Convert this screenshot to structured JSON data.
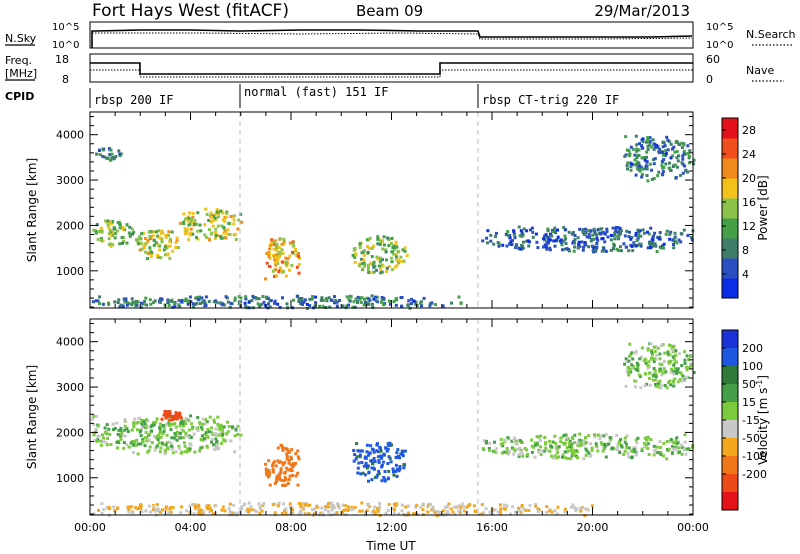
{
  "header": {
    "title": "Fort Hays West (fitACF)",
    "beam": "Beam 09",
    "date": "29/Mar/2013"
  },
  "summary_panels": {
    "nsky_label": "N.Sky",
    "nsky_ticks": [
      "10^5",
      "10^0"
    ],
    "nsearch_label": "N.Search",
    "nsearch_ticks": [
      "10^5",
      "10^0"
    ],
    "freq_label_1": "Freq.",
    "freq_label_2": "[MHz]",
    "freq_ticks": [
      "18",
      "8"
    ],
    "nave_label": "Nave",
    "nave_ticks": [
      "60",
      "0"
    ],
    "cpid_label": "CPID",
    "cpid_segments": [
      {
        "label": "rbsp 200 IF",
        "start_hour": 0
      },
      {
        "label": "normal (fast) 151 IF",
        "start_hour": 6
      },
      {
        "label": "rbsp CT-trig 220 IF",
        "start_hour": 15.5
      }
    ]
  },
  "chart_data": [
    {
      "type": "heatmap",
      "parameter": "Power",
      "ylabel": "Slant Range [km]",
      "xlabel": "",
      "x_ticks": [
        "00:00",
        "04:00",
        "08:00",
        "12:00",
        "16:00",
        "20:00",
        "00:00"
      ],
      "xlim_hours": [
        0,
        24
      ],
      "ylim_km": [
        180,
        4500
      ],
      "y_ticks": [
        "1000",
        "2000",
        "3000",
        "4000"
      ],
      "colorbar_label": "Power [dB]",
      "colorbar_ticks": [
        "4",
        "8",
        "12",
        "16",
        "20",
        "24",
        "28"
      ],
      "colorbar_range": [
        0,
        30
      ],
      "colormap": [
        "#0a2ee6",
        "#2a4fc0",
        "#3f7f6a",
        "#43a047",
        "#8bc34a",
        "#f2c11a",
        "#f08a1a",
        "#ef4f1a",
        "#e3121a"
      ],
      "regions": [
        {
          "t0": 0.0,
          "t1": 1.7,
          "r0": 1550,
          "r1": 2150,
          "value": 14
        },
        {
          "t0": 1.7,
          "t1": 3.5,
          "r0": 1300,
          "r1": 1950,
          "value": 16
        },
        {
          "t0": 3.5,
          "t1": 6.0,
          "r0": 1700,
          "r1": 2400,
          "value": 16
        },
        {
          "t0": 0.2,
          "t1": 1.2,
          "r0": 3450,
          "r1": 3750,
          "value": 8
        },
        {
          "t0": 6.9,
          "t1": 8.3,
          "r0": 850,
          "r1": 1750,
          "value": 20
        },
        {
          "t0": 10.4,
          "t1": 12.6,
          "r0": 950,
          "r1": 1800,
          "value": 14
        },
        {
          "t0": 15.5,
          "t1": 24.0,
          "r0": 1450,
          "r1": 2000,
          "value": 6
        },
        {
          "t0": 21.2,
          "t1": 24.0,
          "r0": 3000,
          "r1": 4000,
          "value": 8
        },
        {
          "t0": 0.0,
          "t1": 15.0,
          "r0": 200,
          "r1": 480,
          "value": 8
        }
      ]
    },
    {
      "type": "heatmap",
      "parameter": "Velocity",
      "ylabel": "Slant Range [km]",
      "xlabel": "Time UT",
      "x_ticks": [
        "00:00",
        "04:00",
        "08:00",
        "12:00",
        "16:00",
        "20:00",
        "00:00"
      ],
      "xlim_hours": [
        0,
        24
      ],
      "ylim_km": [
        180,
        4500
      ],
      "y_ticks": [
        "1000",
        "2000",
        "3000",
        "4000"
      ],
      "colorbar_label_1": "Velocity",
      "colorbar_label_2": "[m s",
      "colorbar_label_sup": "-1",
      "colorbar_label_3": "]",
      "colorbar_ticks": [
        "200",
        "100",
        "50",
        "15",
        "-15",
        "-50",
        "-100",
        "-200"
      ],
      "colorbar_colors": [
        "#1a33d6",
        "#1f58e0",
        "#2f7a3a",
        "#43a047",
        "#7ccb3c",
        "#c8c8c8",
        "#f3a71d",
        "#f0781b",
        "#ec4b17",
        "#e5121a"
      ],
      "regions": [
        {
          "t0": 0.0,
          "t1": 6.0,
          "r0": 1550,
          "r1": 2400,
          "value": 0
        },
        {
          "t0": 2.8,
          "t1": 3.6,
          "r0": 2300,
          "r1": 2500,
          "value": -250
        },
        {
          "t0": 6.9,
          "t1": 8.3,
          "r0": 850,
          "r1": 1750,
          "value": -150
        },
        {
          "t0": 10.4,
          "t1": 12.6,
          "r0": 950,
          "r1": 1800,
          "value": 120
        },
        {
          "t0": 15.5,
          "t1": 24.0,
          "r0": 1450,
          "r1": 2000,
          "value": 0
        },
        {
          "t0": 21.2,
          "t1": 24.0,
          "r0": 3000,
          "r1": 4000,
          "value": 0
        },
        {
          "t0": 0.0,
          "t1": 20.0,
          "r0": 200,
          "r1": 480,
          "value": -50
        }
      ]
    }
  ]
}
